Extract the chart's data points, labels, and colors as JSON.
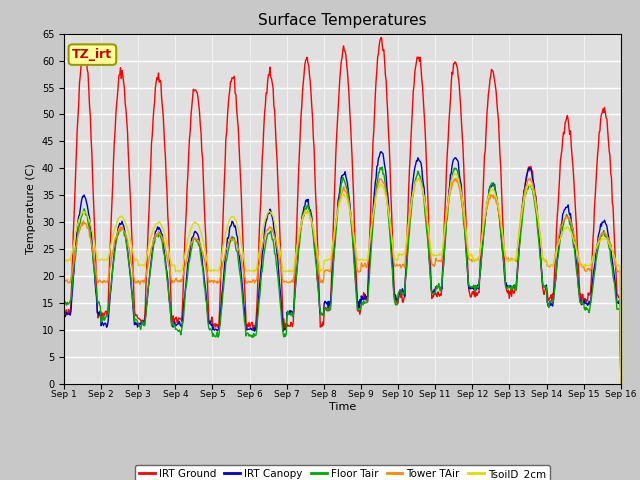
{
  "title": "Surface Temperatures",
  "xlabel": "Time",
  "ylabel": "Temperature (C)",
  "ylim": [
    0,
    65
  ],
  "yticks": [
    0,
    5,
    10,
    15,
    20,
    25,
    30,
    35,
    40,
    45,
    50,
    55,
    60,
    65
  ],
  "num_days": 15,
  "fig_facecolor": "#c8c8c8",
  "ax_facecolor": "#e0e0e0",
  "series": [
    {
      "label": "IRT Ground",
      "color": "#ff0000"
    },
    {
      "label": "IRT Canopy",
      "color": "#0000cc"
    },
    {
      "label": "Floor Tair",
      "color": "#00aa00"
    },
    {
      "label": "Tower TAir",
      "color": "#ff8800"
    },
    {
      "label": "TsoilD_2cm",
      "color": "#dddd00"
    }
  ],
  "xtick_labels": [
    "Sep 1",
    "Sep 2",
    "Sep 3",
    "Sep 4",
    "Sep 5",
    "Sep 6",
    "Sep 7",
    "Sep 8",
    "Sep 9",
    "Sep 10",
    "Sep 11",
    "Sep 12",
    "Sep 13",
    "Sep 14",
    "Sep 15",
    "Sep 16"
  ],
  "annotation_text": "TZ_irt",
  "annotation_bg": "#ffff99",
  "annotation_fg": "#cc0000",
  "annotation_border": "#999900",
  "irt_ground_peaks": [
    62,
    58,
    57,
    55,
    57,
    58,
    60,
    62,
    64,
    61,
    60,
    58,
    40,
    49,
    51
  ],
  "irt_ground_troughs": [
    13,
    13,
    12,
    12,
    11,
    11,
    11,
    14,
    16,
    16,
    17,
    17,
    17,
    16,
    16
  ],
  "irt_canopy_peaks": [
    35,
    30,
    29,
    28,
    30,
    32,
    34,
    39,
    43,
    42,
    42,
    37,
    40,
    33,
    30
  ],
  "irt_canopy_troughs": [
    13,
    11,
    11,
    11,
    10,
    10,
    13,
    15,
    16,
    17,
    18,
    18,
    18,
    15,
    15
  ],
  "floor_tair_peaks": [
    32,
    29,
    28,
    27,
    27,
    28,
    33,
    38,
    40,
    39,
    40,
    37,
    37,
    31,
    28
  ],
  "floor_tair_troughs": [
    15,
    12,
    11,
    10,
    9,
    9,
    13,
    14,
    15,
    17,
    18,
    18,
    18,
    15,
    14
  ],
  "tower_tair_peaks": [
    30,
    29,
    28,
    27,
    27,
    29,
    32,
    36,
    38,
    38,
    38,
    35,
    38,
    31,
    28
  ],
  "tower_tair_troughs": [
    19,
    19,
    19,
    19,
    19,
    19,
    19,
    21,
    22,
    22,
    23,
    23,
    23,
    22,
    21
  ],
  "tsoil_peaks": [
    32,
    31,
    30,
    30,
    31,
    32,
    32,
    35,
    37,
    38,
    39,
    36,
    37,
    29,
    27
  ],
  "tsoil_troughs": [
    23,
    23,
    22,
    21,
    21,
    21,
    21,
    23,
    23,
    24,
    24,
    23,
    23,
    22,
    22
  ]
}
